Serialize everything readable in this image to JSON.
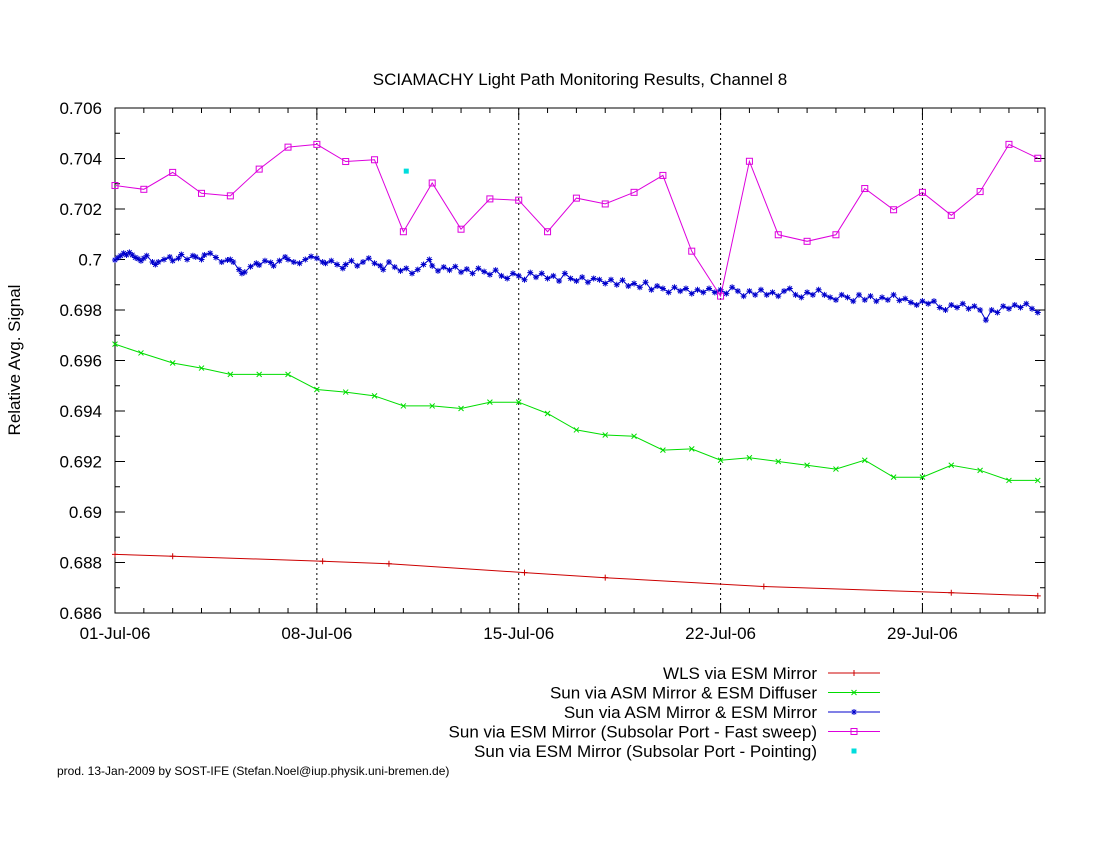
{
  "chart_data": {
    "type": "line",
    "title": "SCIAMACHY Light Path Monitoring Results, Channel 8",
    "ylabel": "Relative Avg. Signal",
    "xlabel": "",
    "x_unit": "day of July 2006",
    "xlim": [
      1,
      33.25
    ],
    "ylim": [
      0.686,
      0.706
    ],
    "grid": "vertical lines at major x ticks",
    "legend_position": "bottom-right",
    "xticks": [
      {
        "x": 1,
        "label": "01-Jul-06"
      },
      {
        "x": 8,
        "label": "08-Jul-06"
      },
      {
        "x": 15,
        "label": "15-Jul-06"
      },
      {
        "x": 22,
        "label": "22-Jul-06"
      },
      {
        "x": 29,
        "label": "29-Jul-06"
      }
    ],
    "yticks": [
      {
        "y": 0.686,
        "label": "0.686"
      },
      {
        "y": 0.688,
        "label": "0.688"
      },
      {
        "y": 0.69,
        "label": "0.69"
      },
      {
        "y": 0.692,
        "label": "0.692"
      },
      {
        "y": 0.694,
        "label": "0.694"
      },
      {
        "y": 0.696,
        "label": "0.696"
      },
      {
        "y": 0.698,
        "label": "0.698"
      },
      {
        "y": 0.7,
        "label": "0.7"
      },
      {
        "y": 0.702,
        "label": "0.702"
      },
      {
        "y": 0.704,
        "label": "0.704"
      },
      {
        "y": 0.706,
        "label": "0.706"
      }
    ],
    "series": [
      {
        "name": "WLS via ESM Mirror",
        "color": "#cc0000",
        "marker": "plus",
        "line": true,
        "points": [
          [
            1.0,
            0.68832
          ],
          [
            3.0,
            0.68825
          ],
          [
            8.2,
            0.68805
          ],
          [
            10.5,
            0.68795
          ],
          [
            15.2,
            0.6876
          ],
          [
            18.0,
            0.6874
          ],
          [
            23.5,
            0.68705
          ],
          [
            30.0,
            0.6868
          ],
          [
            33.0,
            0.68668
          ]
        ]
      },
      {
        "name": "Sun via ASM Mirror & ESM Diffuser",
        "color": "#00dd00",
        "marker": "x",
        "line": true,
        "points": [
          [
            1.0,
            0.69665
          ],
          [
            1.9,
            0.6963
          ],
          [
            3.0,
            0.6959
          ],
          [
            4.0,
            0.6957
          ],
          [
            5.0,
            0.69545
          ],
          [
            6.0,
            0.69545
          ],
          [
            7.0,
            0.69545
          ],
          [
            8.0,
            0.69485
          ],
          [
            9.0,
            0.69475
          ],
          [
            10.0,
            0.6946
          ],
          [
            11.0,
            0.6942
          ],
          [
            12.0,
            0.6942
          ],
          [
            13.0,
            0.6941
          ],
          [
            14.0,
            0.69435
          ],
          [
            15.0,
            0.69435
          ],
          [
            16.0,
            0.6939
          ],
          [
            17.0,
            0.69325
          ],
          [
            18.0,
            0.69305
          ],
          [
            19.0,
            0.693
          ],
          [
            20.0,
            0.69245
          ],
          [
            21.0,
            0.6925
          ],
          [
            22.0,
            0.69205
          ],
          [
            23.0,
            0.69215
          ],
          [
            24.0,
            0.692
          ],
          [
            25.0,
            0.69185
          ],
          [
            26.0,
            0.6917
          ],
          [
            27.0,
            0.69205
          ],
          [
            28.0,
            0.69138
          ],
          [
            29.0,
            0.69138
          ],
          [
            30.0,
            0.69185
          ],
          [
            31.0,
            0.69165
          ],
          [
            32.0,
            0.69125
          ],
          [
            33.0,
            0.69125
          ]
        ]
      },
      {
        "name": "Sun via ASM Mirror & ESM Mirror",
        "color": "#0000cc",
        "marker": "star",
        "line": true,
        "points": [
          [
            1.0,
            0.69998
          ],
          [
            1.1,
            0.70007
          ],
          [
            1.2,
            0.70015
          ],
          [
            1.3,
            0.70025
          ],
          [
            1.4,
            0.70018
          ],
          [
            1.5,
            0.70028
          ],
          [
            1.6,
            0.70018
          ],
          [
            1.7,
            0.70008
          ],
          [
            1.8,
            0.70003
          ],
          [
            1.9,
            0.69995
          ],
          [
            2.0,
            0.70005
          ],
          [
            2.1,
            0.70015
          ],
          [
            2.3,
            0.6999
          ],
          [
            2.4,
            0.6998
          ],
          [
            2.5,
            0.6999
          ],
          [
            2.7,
            0.7
          ],
          [
            2.9,
            0.7001
          ],
          [
            3.0,
            0.69995
          ],
          [
            3.2,
            0.70005
          ],
          [
            3.3,
            0.7002
          ],
          [
            3.5,
            0.7
          ],
          [
            3.7,
            0.70015
          ],
          [
            3.8,
            0.7001
          ],
          [
            4.0,
            0.7
          ],
          [
            4.1,
            0.70018
          ],
          [
            4.3,
            0.70025
          ],
          [
            4.5,
            0.70008
          ],
          [
            4.7,
            0.6999
          ],
          [
            4.9,
            0.69998
          ],
          [
            5.0,
            0.7
          ],
          [
            5.1,
            0.6999
          ],
          [
            5.3,
            0.6996
          ],
          [
            5.4,
            0.69945
          ],
          [
            5.5,
            0.6995
          ],
          [
            5.7,
            0.69972
          ],
          [
            5.9,
            0.69985
          ],
          [
            6.0,
            0.69978
          ],
          [
            6.2,
            0.69995
          ],
          [
            6.4,
            0.69988
          ],
          [
            6.5,
            0.69975
          ],
          [
            6.7,
            0.69995
          ],
          [
            6.9,
            0.7001
          ],
          [
            7.0,
            0.7
          ],
          [
            7.2,
            0.6999
          ],
          [
            7.4,
            0.69985
          ],
          [
            7.6,
            0.7
          ],
          [
            7.8,
            0.70012
          ],
          [
            8.0,
            0.70005
          ],
          [
            8.2,
            0.6999
          ],
          [
            8.3,
            0.69985
          ],
          [
            8.5,
            0.69995
          ],
          [
            8.7,
            0.6998
          ],
          [
            8.9,
            0.69965
          ],
          [
            9.0,
            0.6998
          ],
          [
            9.2,
            0.69995
          ],
          [
            9.4,
            0.69975
          ],
          [
            9.6,
            0.6999
          ],
          [
            9.8,
            0.70005
          ],
          [
            10.0,
            0.69985
          ],
          [
            10.2,
            0.69975
          ],
          [
            10.3,
            0.6996
          ],
          [
            10.5,
            0.6999
          ],
          [
            10.7,
            0.6997
          ],
          [
            10.9,
            0.69955
          ],
          [
            11.1,
            0.69965
          ],
          [
            11.3,
            0.69945
          ],
          [
            11.5,
            0.6996
          ],
          [
            11.7,
            0.6998
          ],
          [
            11.9,
            0.7
          ],
          [
            12.0,
            0.69975
          ],
          [
            12.2,
            0.69955
          ],
          [
            12.4,
            0.6997
          ],
          [
            12.6,
            0.69958
          ],
          [
            12.8,
            0.69972
          ],
          [
            13.0,
            0.6995
          ],
          [
            13.2,
            0.69962
          ],
          [
            13.4,
            0.69945
          ],
          [
            13.6,
            0.69965
          ],
          [
            13.8,
            0.69952
          ],
          [
            14.0,
            0.6994
          ],
          [
            14.2,
            0.69958
          ],
          [
            14.4,
            0.69935
          ],
          [
            14.6,
            0.69925
          ],
          [
            14.8,
            0.69945
          ],
          [
            15.0,
            0.69935
          ],
          [
            15.2,
            0.6992
          ],
          [
            15.4,
            0.69948
          ],
          [
            15.6,
            0.6993
          ],
          [
            15.8,
            0.69945
          ],
          [
            16.0,
            0.69925
          ],
          [
            16.2,
            0.69935
          ],
          [
            16.4,
            0.69915
          ],
          [
            16.6,
            0.69945
          ],
          [
            16.8,
            0.69925
          ],
          [
            17.0,
            0.69915
          ],
          [
            17.2,
            0.6993
          ],
          [
            17.4,
            0.6991
          ],
          [
            17.6,
            0.69925
          ],
          [
            17.8,
            0.6992
          ],
          [
            18.0,
            0.69905
          ],
          [
            18.2,
            0.6992
          ],
          [
            18.4,
            0.699
          ],
          [
            18.6,
            0.69918
          ],
          [
            18.8,
            0.69895
          ],
          [
            19.0,
            0.69905
          ],
          [
            19.2,
            0.6989
          ],
          [
            19.4,
            0.6991
          ],
          [
            19.6,
            0.6988
          ],
          [
            19.8,
            0.69895
          ],
          [
            20.0,
            0.69885
          ],
          [
            20.2,
            0.6987
          ],
          [
            20.4,
            0.6989
          ],
          [
            20.6,
            0.69875
          ],
          [
            20.8,
            0.69885
          ],
          [
            21.0,
            0.69865
          ],
          [
            21.2,
            0.6988
          ],
          [
            21.4,
            0.6987
          ],
          [
            21.6,
            0.69885
          ],
          [
            21.8,
            0.6987
          ],
          [
            22.0,
            0.6988
          ],
          [
            22.2,
            0.69865
          ],
          [
            22.4,
            0.6989
          ],
          [
            22.6,
            0.69875
          ],
          [
            22.8,
            0.69855
          ],
          [
            23.0,
            0.69875
          ],
          [
            23.2,
            0.6986
          ],
          [
            23.4,
            0.6988
          ],
          [
            23.6,
            0.6986
          ],
          [
            23.8,
            0.6987
          ],
          [
            24.0,
            0.69855
          ],
          [
            24.2,
            0.69875
          ],
          [
            24.4,
            0.69885
          ],
          [
            24.6,
            0.6986
          ],
          [
            24.8,
            0.6985
          ],
          [
            25.0,
            0.6987
          ],
          [
            25.2,
            0.6986
          ],
          [
            25.4,
            0.6988
          ],
          [
            25.6,
            0.6986
          ],
          [
            25.8,
            0.6985
          ],
          [
            26.0,
            0.6984
          ],
          [
            26.2,
            0.6986
          ],
          [
            26.4,
            0.6985
          ],
          [
            26.6,
            0.69835
          ],
          [
            26.8,
            0.6986
          ],
          [
            27.0,
            0.6984
          ],
          [
            27.2,
            0.69855
          ],
          [
            27.4,
            0.69835
          ],
          [
            27.6,
            0.6985
          ],
          [
            27.8,
            0.6984
          ],
          [
            28.0,
            0.6986
          ],
          [
            28.2,
            0.69838
          ],
          [
            28.4,
            0.69845
          ],
          [
            28.6,
            0.6983
          ],
          [
            28.8,
            0.6982
          ],
          [
            29.0,
            0.69835
          ],
          [
            29.2,
            0.69825
          ],
          [
            29.4,
            0.69835
          ],
          [
            29.6,
            0.6981
          ],
          [
            29.8,
            0.698
          ],
          [
            30.0,
            0.6982
          ],
          [
            30.2,
            0.6981
          ],
          [
            30.4,
            0.69825
          ],
          [
            30.6,
            0.69805
          ],
          [
            30.8,
            0.69815
          ],
          [
            31.0,
            0.698
          ],
          [
            31.2,
            0.6976
          ],
          [
            31.4,
            0.698
          ],
          [
            31.6,
            0.6979
          ],
          [
            31.8,
            0.69815
          ],
          [
            32.0,
            0.69805
          ],
          [
            32.2,
            0.6982
          ],
          [
            32.4,
            0.6981
          ],
          [
            32.6,
            0.69825
          ],
          [
            32.8,
            0.69805
          ],
          [
            33.0,
            0.6979
          ]
        ]
      },
      {
        "name": "Sun via ESM Mirror (Subsolar Port - Fast sweep)",
        "color": "#dd00dd",
        "marker": "square",
        "line": true,
        "points": [
          [
            1.0,
            0.70293
          ],
          [
            2.0,
            0.70278
          ],
          [
            3.0,
            0.70345
          ],
          [
            4.0,
            0.70262
          ],
          [
            5.0,
            0.70252
          ],
          [
            6.0,
            0.70358
          ],
          [
            7.0,
            0.70445
          ],
          [
            8.0,
            0.70456
          ],
          [
            9.0,
            0.70388
          ],
          [
            10.0,
            0.70395
          ],
          [
            11.0,
            0.7011
          ],
          [
            12.0,
            0.70303
          ],
          [
            13.0,
            0.7012
          ],
          [
            14.0,
            0.7024
          ],
          [
            15.0,
            0.70235
          ],
          [
            16.0,
            0.7011
          ],
          [
            17.0,
            0.70243
          ],
          [
            18.0,
            0.7022
          ],
          [
            19.0,
            0.70266
          ],
          [
            20.0,
            0.70333
          ],
          [
            21.0,
            0.70033
          ],
          [
            22.0,
            0.69855
          ],
          [
            23.0,
            0.70389
          ],
          [
            24.0,
            0.70098
          ],
          [
            25.0,
            0.70072
          ],
          [
            26.0,
            0.70098
          ],
          [
            27.0,
            0.70281
          ],
          [
            28.0,
            0.70197
          ],
          [
            29.0,
            0.70266
          ],
          [
            30.0,
            0.70175
          ],
          [
            31.0,
            0.70269
          ],
          [
            32.0,
            0.70456
          ],
          [
            33.0,
            0.70401
          ]
        ]
      },
      {
        "name": "Sun via ESM Mirror (Subsolar Port - Pointing)",
        "color": "#00dddd",
        "marker": "dot",
        "line": false,
        "points": [
          [
            11.1,
            0.7035
          ]
        ]
      }
    ],
    "footnote": "prod. 13-Jan-2009 by SOST-IFE (Stefan.Noel@iup.physik.uni-bremen.de)"
  }
}
